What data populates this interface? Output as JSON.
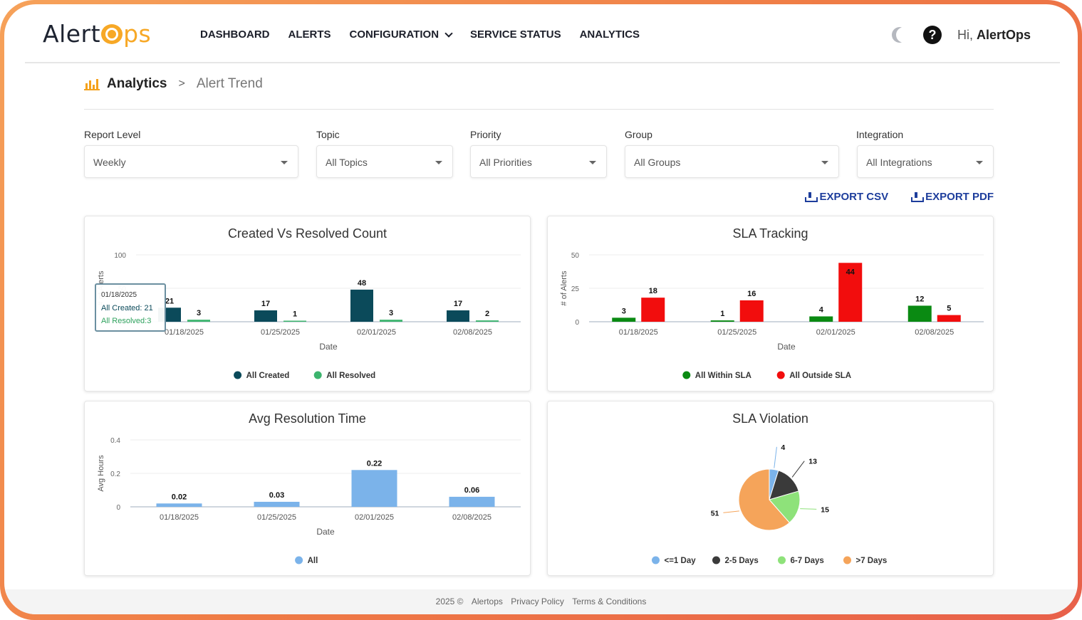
{
  "header": {
    "logo_text": "Alert",
    "logo_suffix": "ps",
    "nav": [
      "DASHBOARD",
      "ALERTS",
      "CONFIGURATION",
      "SERVICE STATUS",
      "ANALYTICS"
    ],
    "greeting_prefix": "Hi,",
    "greeting_name": "AlertOps"
  },
  "breadcrumb": {
    "current": "Analytics",
    "separator": ">",
    "sub": "Alert Trend"
  },
  "filters": [
    {
      "label": "Report Level",
      "value": "Weekly"
    },
    {
      "label": "Topic",
      "value": "All Topics"
    },
    {
      "label": "Priority",
      "value": "All Priorities"
    },
    {
      "label": "Group",
      "value": "All Groups"
    },
    {
      "label": "Integration",
      "value": "All Integrations"
    }
  ],
  "export": {
    "csv": "EXPORT CSV",
    "pdf": "EXPORT PDF"
  },
  "tooltip": {
    "date": "01/18/2025",
    "created": "All Created: 21",
    "resolved": "All Resolved:3"
  },
  "footer": {
    "copyright": "2025 ©",
    "company": "Alertops",
    "privacy": "Privacy Policy",
    "terms": "Terms & Conditions"
  },
  "chart_data": [
    {
      "type": "bar",
      "title": "Created Vs Resolved Count",
      "xlabel": "Date",
      "ylabel": "# of Alerts",
      "ylim": [
        0,
        100
      ],
      "yticks": [
        0,
        50,
        100
      ],
      "categories": [
        "01/18/2025",
        "01/25/2025",
        "02/01/2025",
        "02/08/2025"
      ],
      "series": [
        {
          "name": "All Created",
          "color": "#0b4a5a",
          "values": [
            21,
            17,
            48,
            17
          ]
        },
        {
          "name": "All Resolved",
          "color": "#3cb46e",
          "values": [
            3,
            1,
            3,
            2
          ]
        }
      ],
      "legend": "bottom"
    },
    {
      "type": "bar",
      "title": "SLA Tracking",
      "xlabel": "Date",
      "ylabel": "# of Alerts",
      "ylim": [
        0,
        50
      ],
      "yticks": [
        0,
        25,
        50
      ],
      "categories": [
        "01/18/2025",
        "01/25/2025",
        "02/01/2025",
        "02/08/2025"
      ],
      "series": [
        {
          "name": "All Within SLA",
          "color": "#0a8a12",
          "values": [
            3,
            1,
            4,
            12
          ]
        },
        {
          "name": "All Outside SLA",
          "color": "#f20d0d",
          "values": [
            18,
            16,
            44,
            5
          ]
        }
      ],
      "legend": "bottom"
    },
    {
      "type": "bar",
      "title": "Avg Resolution Time",
      "xlabel": "Date",
      "ylabel": "Avg Hours",
      "ylim": [
        0,
        0.4
      ],
      "yticks": [
        0,
        0.2,
        0.4
      ],
      "categories": [
        "01/18/2025",
        "01/25/2025",
        "02/01/2025",
        "02/08/2025"
      ],
      "series": [
        {
          "name": "All",
          "color": "#7bb3ea",
          "values": [
            0.02,
            0.03,
            0.22,
            0.06
          ]
        }
      ],
      "legend": "bottom"
    },
    {
      "type": "pie",
      "title": "SLA Violation",
      "categories": [
        "<=1 Day",
        "2-5 Days",
        "6-7 Days",
        ">7 Days"
      ],
      "values": [
        4,
        13,
        15,
        51
      ],
      "colors": [
        "#7bb3ea",
        "#3a3a3a",
        "#8ee27a",
        "#f5a45a"
      ],
      "legend": "bottom"
    }
  ]
}
